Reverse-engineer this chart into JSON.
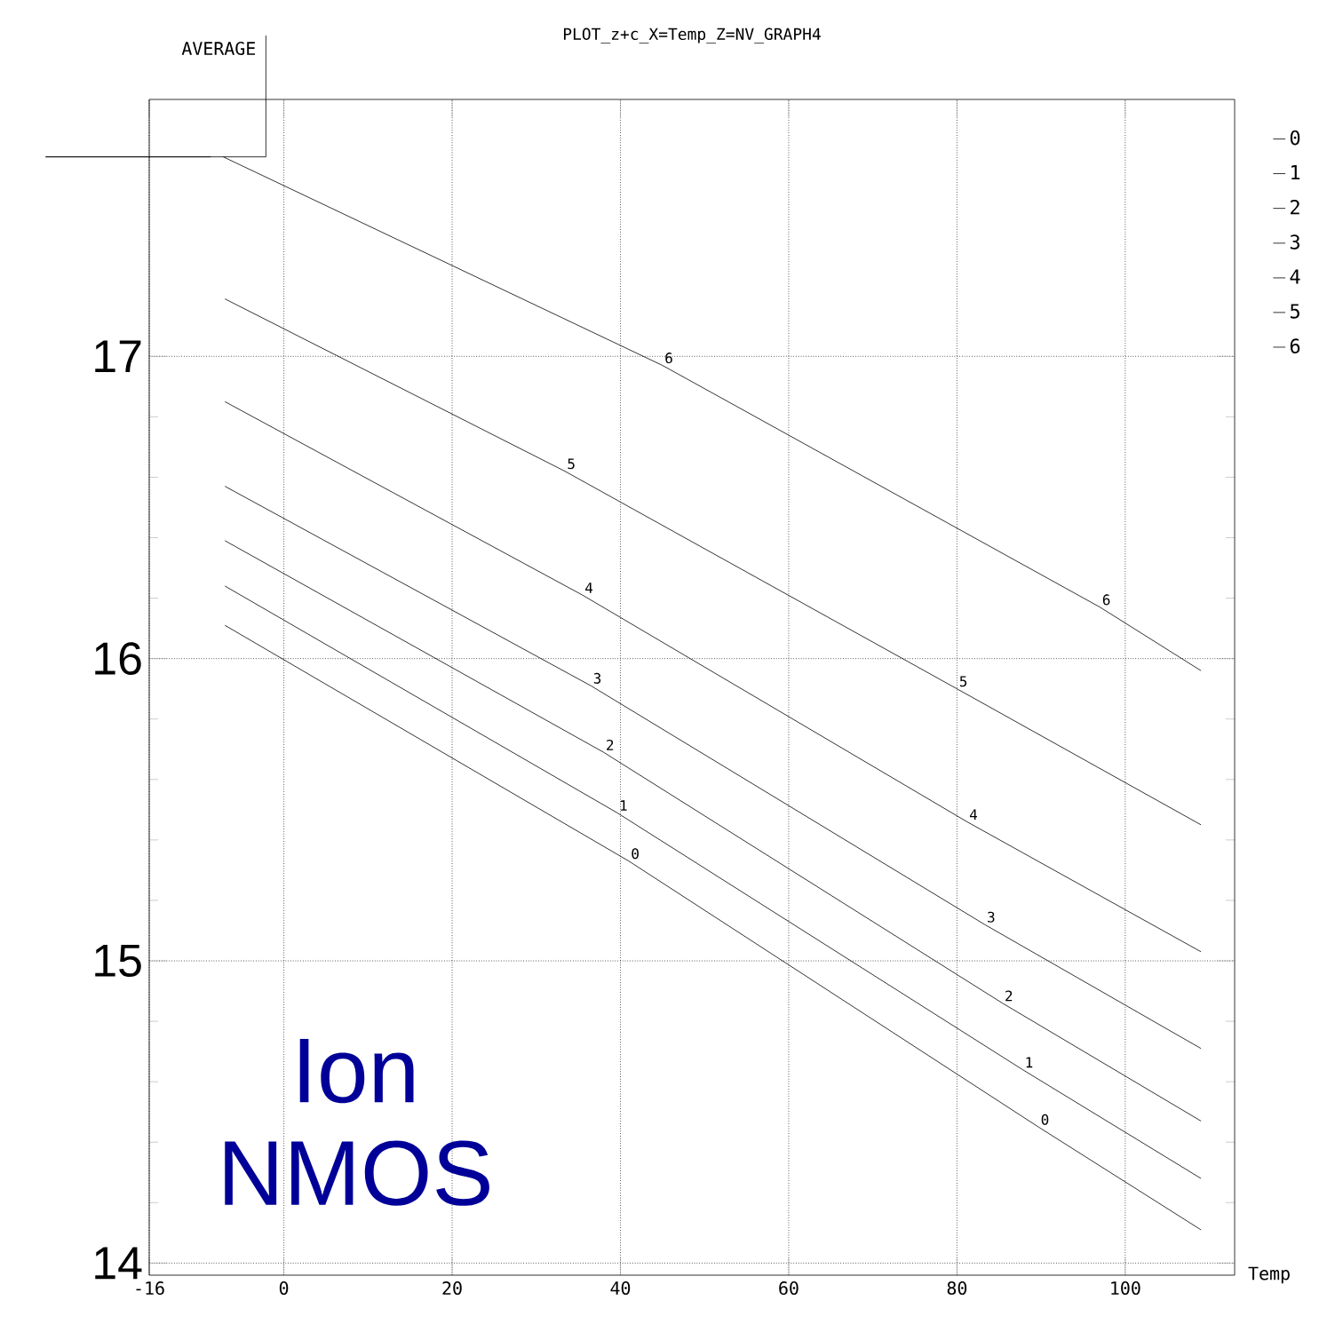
{
  "chart_data": {
    "type": "line",
    "title": "PLOT_z+c_X=Temp_Z=NV_GRAPH4",
    "xlabel": "Temp",
    "xlim": [
      -16,
      113
    ],
    "ylim": [
      13.96,
      17.85
    ],
    "xticks": [
      -16,
      0,
      20,
      40,
      60,
      80,
      100
    ],
    "yticks": [
      14,
      15,
      16,
      17
    ],
    "grid": true,
    "legend": "right",
    "marker": "none",
    "line_style": "solid",
    "annotations": [
      {
        "text": "AVERAGE",
        "x": -7.2,
        "y": 17.66
      },
      "Ion NMOS"
    ],
    "series": [
      {
        "name": "0",
        "color": "#000000",
        "x": [
          -7,
          41,
          89.7,
          109
        ],
        "values": [
          16.11,
          15.33,
          14.45,
          14.11
        ]
      },
      {
        "name": "1",
        "color": "#000000",
        "x": [
          -7,
          39.6,
          87.8,
          109
        ],
        "values": [
          16.24,
          15.49,
          14.64,
          14.28
        ]
      },
      {
        "name": "2",
        "color": "#000000",
        "x": [
          -7,
          38,
          85.4,
          109
        ],
        "values": [
          16.39,
          15.69,
          14.86,
          14.47
        ]
      },
      {
        "name": "3",
        "color": "#000000",
        "x": [
          -7,
          36.5,
          83.3,
          109
        ],
        "values": [
          16.57,
          15.91,
          15.12,
          14.71
        ]
      },
      {
        "name": "4",
        "color": "#000000",
        "x": [
          -7,
          35.5,
          81.2,
          109
        ],
        "values": [
          16.85,
          16.21,
          15.46,
          15.03
        ]
      },
      {
        "name": "5",
        "color": "#000000",
        "x": [
          -7,
          33.4,
          80,
          109
        ],
        "values": [
          17.19,
          16.62,
          15.9,
          15.45
        ]
      },
      {
        "name": "6",
        "color": "#000000",
        "x": [
          -7.2,
          45,
          97,
          109
        ],
        "values": [
          17.66,
          16.97,
          16.17,
          15.96
        ]
      }
    ]
  }
}
